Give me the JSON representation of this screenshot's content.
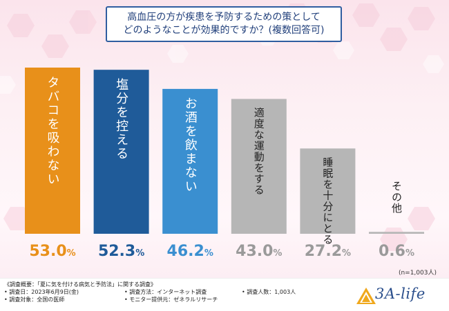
{
  "title": {
    "line1": "高血圧の方が疾患を予防するための策として",
    "line2": "どのようなことが効果的ですか？(複数回答可)"
  },
  "chart_data": {
    "type": "bar",
    "title": "高血圧の方が疾患を予防するための策として どのようなことが効果的ですか？(複数回答可)",
    "categories": [
      "タバコを吸わない",
      "塩分を控える",
      "お酒を飲まない",
      "適度な運動をする",
      "睡眠を十分にとる",
      "その他"
    ],
    "values": [
      53.0,
      52.3,
      46.2,
      43.0,
      27.2,
      0.6
    ],
    "value_labels": [
      {
        "num": "53.0",
        "unit": "%"
      },
      {
        "num": "52.3",
        "unit": "%"
      },
      {
        "num": "46.2",
        "unit": "%"
      },
      {
        "num": "43.0",
        "unit": "%"
      },
      {
        "num": "27.2",
        "unit": "%"
      },
      {
        "num": "0.6",
        "unit": "%"
      }
    ],
    "colors": [
      "#e8901a",
      "#1f5b99",
      "#3a8fd0",
      "#b6b6b6",
      "#b6b6b6",
      "#b6b6b6"
    ],
    "label_colors": [
      "#e8901a",
      "#1f5b99",
      "#3a8fd0",
      "#9a9a9a",
      "#9a9a9a",
      "#9a9a9a"
    ],
    "ylim": [
      0,
      53.0
    ],
    "xlabel": "",
    "ylabel": ""
  },
  "sample_size": "(n=1,003人)",
  "footer": {
    "overview": "《調査概要：「夏に気を付ける病気と予防法」に関する調査》",
    "date": "• 調査日：2023年6月9日(金)",
    "target": "• 調査対象：全国の医師",
    "method": "• 調査方法：インターネット調査",
    "provider": "• モニター提供元：ゼネラルリサーチ",
    "count": "• 調査人数：1,003人"
  },
  "logo": {
    "text": "3A-life"
  }
}
